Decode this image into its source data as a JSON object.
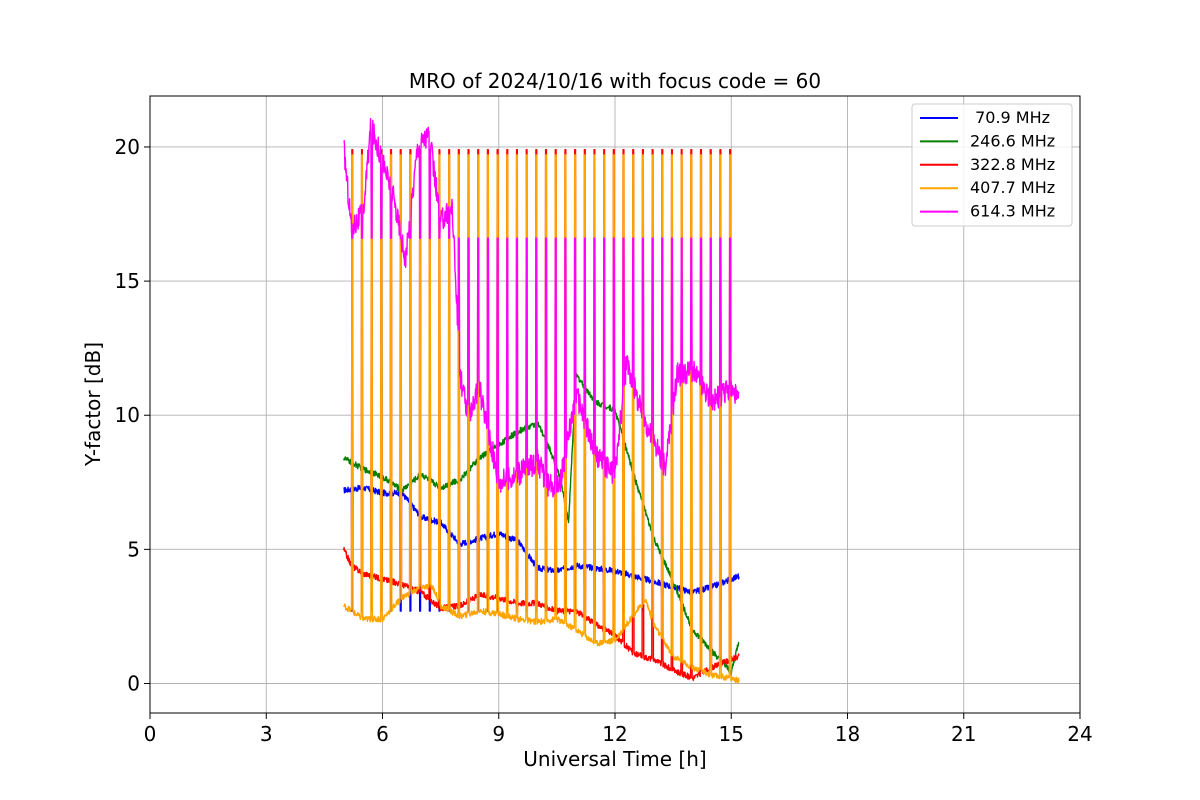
{
  "chart_data": {
    "type": "line",
    "title": "MRO of 2024/10/16 with focus code = 60",
    "xlabel": "Universal Time [h]",
    "ylabel": "Y-factor [dB]",
    "xlim": [
      0,
      24
    ],
    "ylim": [
      -1.1,
      21.9
    ],
    "x_ticks": [
      0,
      3,
      6,
      9,
      12,
      15,
      18,
      21,
      24
    ],
    "y_ticks": [
      0,
      5,
      10,
      15,
      20
    ],
    "grid": true,
    "legend_position": "top-right",
    "series": [
      {
        "name": " 70.9 MHz",
        "color": "#0000ff",
        "calibration_low": 0.1,
        "calibration_high": 2.7,
        "x": [
          5.0,
          5.5,
          6.0,
          6.5,
          7.0,
          7.5,
          8.0,
          8.5,
          9.0,
          9.5,
          10.0,
          10.5,
          11.0,
          11.5,
          12.0,
          12.5,
          13.0,
          13.5,
          14.0,
          14.5,
          15.0,
          15.2
        ],
        "values": [
          7.2,
          7.3,
          7.1,
          7.1,
          6.2,
          6.0,
          5.2,
          5.4,
          5.6,
          5.3,
          4.3,
          4.2,
          4.4,
          4.3,
          4.2,
          4.0,
          3.8,
          3.6,
          3.4,
          3.6,
          3.9,
          4.0
        ]
      },
      {
        "name": "246.6 MHz",
        "color": "#008000",
        "x": [
          5.0,
          5.5,
          6.0,
          6.5,
          7.0,
          7.5,
          8.0,
          8.5,
          9.0,
          9.5,
          10.0,
          10.3,
          10.6,
          10.8,
          11.0,
          11.5,
          12.0,
          12.5,
          13.0,
          13.5,
          14.0,
          14.5,
          15.0,
          15.2
        ],
        "values": [
          8.4,
          8.0,
          7.7,
          7.2,
          7.8,
          7.3,
          7.6,
          8.4,
          8.9,
          9.4,
          9.7,
          8.8,
          7.6,
          6.0,
          11.5,
          10.5,
          10.2,
          7.7,
          5.4,
          3.8,
          2.0,
          1.2,
          0.4,
          1.6
        ]
      },
      {
        "name": "322.8 MHz",
        "color": "#ff0000",
        "calibration_high": 19.9,
        "x": [
          5.0,
          5.2,
          5.5,
          6.0,
          6.5,
          7.0,
          7.5,
          8.0,
          8.5,
          9.0,
          9.5,
          10.0,
          10.5,
          11.0,
          11.5,
          12.0,
          12.5,
          13.0,
          13.5,
          14.0,
          14.5,
          15.0,
          15.2
        ],
        "values": [
          5.0,
          4.4,
          4.1,
          3.9,
          3.7,
          3.4,
          2.8,
          2.9,
          3.3,
          3.2,
          3.0,
          3.0,
          2.7,
          2.7,
          2.2,
          1.8,
          1.1,
          0.9,
          0.5,
          0.2,
          0.6,
          0.9,
          1.0
        ]
      },
      {
        "name": "407.7 MHz",
        "color": "#ffa500",
        "calibration_high": 19.7,
        "x": [
          5.0,
          5.5,
          6.0,
          6.5,
          7.0,
          7.3,
          7.5,
          8.0,
          8.5,
          9.0,
          9.5,
          10.0,
          10.5,
          11.0,
          11.5,
          12.0,
          12.5,
          12.8,
          13.0,
          13.5,
          14.0,
          14.5,
          15.0,
          15.2
        ],
        "values": [
          2.9,
          2.4,
          2.4,
          3.2,
          3.6,
          3.6,
          2.9,
          2.5,
          2.7,
          2.6,
          2.4,
          2.3,
          2.4,
          2.0,
          1.5,
          1.6,
          2.6,
          3.1,
          2.2,
          1.0,
          0.6,
          0.3,
          0.2,
          0.1
        ]
      },
      {
        "name": "614.3 MHz",
        "color": "#ff00ff",
        "calibration_high": 16.6,
        "x": [
          5.0,
          5.2,
          5.5,
          5.7,
          6.0,
          6.3,
          6.6,
          6.9,
          7.2,
          7.5,
          7.8,
          8.0,
          8.2,
          8.5,
          9.0,
          9.5,
          10.0,
          10.3,
          10.6,
          11.0,
          11.5,
          12.0,
          12.3,
          12.6,
          13.0,
          13.3,
          13.6,
          14.0,
          14.5,
          15.0,
          15.2
        ],
        "values": [
          20.0,
          17.0,
          17.5,
          20.8,
          19.5,
          18.0,
          15.8,
          20.0,
          20.5,
          17.2,
          17.8,
          11.5,
          10.0,
          11.0,
          7.5,
          7.8,
          8.3,
          7.3,
          7.6,
          10.8,
          8.5,
          7.8,
          12.0,
          10.5,
          9.0,
          8.0,
          11.5,
          11.7,
          10.5,
          11.0,
          10.5
        ]
      }
    ]
  }
}
